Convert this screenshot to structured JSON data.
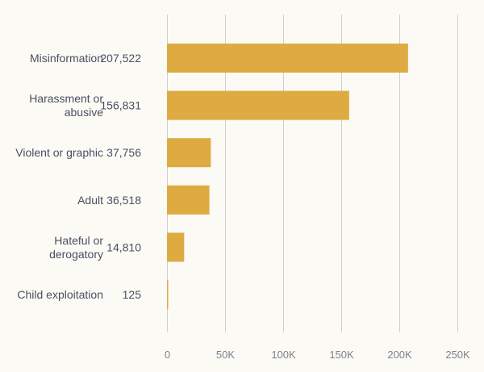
{
  "colors": {
    "background": "#fbfaf4",
    "bar": "#ddab42",
    "gridline": "#cfcfcf",
    "label_text": "#4a4f63",
    "tick_text": "#7d8090"
  },
  "chart_data": {
    "type": "bar",
    "orientation": "horizontal",
    "categories": [
      [
        "Misinformation"
      ],
      [
        "Harassment or",
        "abusive"
      ],
      [
        "Violent or graphic"
      ],
      [
        "Adult"
      ],
      [
        "Hateful or",
        "derogatory"
      ],
      [
        "Child exploitation"
      ]
    ],
    "values": [
      207522,
      156831,
      37756,
      36518,
      14810,
      125
    ],
    "value_labels": [
      "207,522",
      "156,831",
      "37,756",
      "36,518",
      "14,810",
      "125"
    ],
    "xlim": [
      0,
      250000
    ],
    "xticks": [
      0,
      50000,
      100000,
      150000,
      200000,
      250000
    ],
    "xtick_labels": [
      "0",
      "50K",
      "100K",
      "150K",
      "200K",
      "250K"
    ],
    "grid": "vertical",
    "title": "",
    "xlabel": "",
    "ylabel": ""
  }
}
